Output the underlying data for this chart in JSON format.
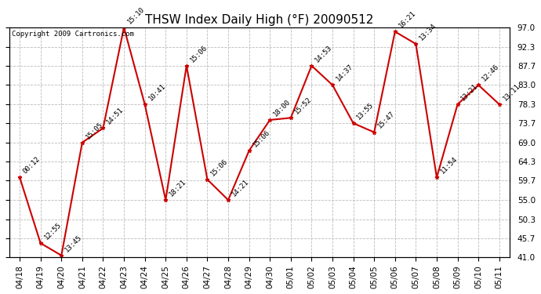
{
  "title": "THSW Index Daily High (°F) 20090512",
  "copyright": "Copyright 2009 Cartronics.com",
  "dates": [
    "04/18",
    "04/19",
    "04/20",
    "04/21",
    "04/22",
    "04/23",
    "04/24",
    "04/25",
    "04/26",
    "04/27",
    "04/28",
    "04/29",
    "04/30",
    "05/01",
    "05/02",
    "05/03",
    "05/04",
    "05/05",
    "05/06",
    "05/07",
    "05/08",
    "05/09",
    "05/10",
    "05/11"
  ],
  "values": [
    60.5,
    44.5,
    41.5,
    69.0,
    72.5,
    97.0,
    78.3,
    55.0,
    87.7,
    60.0,
    55.0,
    67.0,
    74.5,
    75.0,
    87.7,
    83.0,
    73.7,
    71.5,
    96.0,
    93.0,
    60.5,
    78.3,
    83.0,
    78.3
  ],
  "time_labels": [
    "00:12",
    "12:55",
    "13:45",
    "15:05",
    "14:51",
    "15:10",
    "10:41",
    "18:21",
    "15:06",
    "15:06",
    "14:21",
    "15:06",
    "18:00",
    "15:52",
    "14:53",
    "14:37",
    "13:55",
    "15:47",
    "16:21",
    "13:34",
    "11:54",
    "13:21",
    "12:46",
    "13:11"
  ],
  "ylim": [
    41.0,
    97.0
  ],
  "yticks": [
    41.0,
    45.7,
    50.3,
    55.0,
    59.7,
    64.3,
    69.0,
    73.7,
    78.3,
    83.0,
    87.7,
    92.3,
    97.0
  ],
  "line_color": "#cc0000",
  "marker_color": "#cc0000",
  "bg_color": "#ffffff",
  "grid_color": "#bbbbbb",
  "title_fontsize": 11,
  "label_fontsize": 6.5,
  "tick_fontsize": 7.5,
  "copyright_fontsize": 6.5,
  "fig_width": 6.9,
  "fig_height": 3.75,
  "dpi": 100
}
